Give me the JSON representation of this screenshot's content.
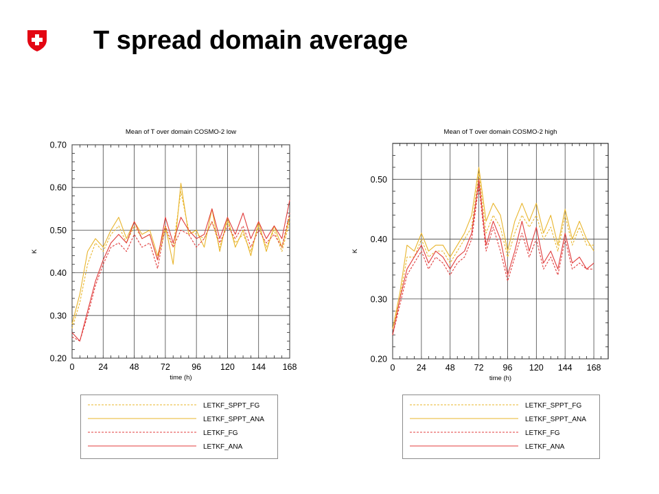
{
  "slide": {
    "title": "T spread domain average",
    "logo": {
      "icon": "swiss-cross-shield-icon",
      "color": "#e30613"
    }
  },
  "colors": {
    "sppt": "#e8b42a",
    "letkf": "#e03a3a",
    "grid": "#000000"
  },
  "legend": {
    "entries": [
      {
        "label": "LETKF_SPPT_FG",
        "color": "#e8b42a",
        "dash": "dashed"
      },
      {
        "label": "LETKF_SPPT_ANA",
        "color": "#e8b42a",
        "dash": "solid"
      },
      {
        "label": "LETKF_FG",
        "color": "#e03a3a",
        "dash": "dashed"
      },
      {
        "label": "LETKF_ANA",
        "color": "#e03a3a",
        "dash": "solid"
      }
    ]
  },
  "chart_data": [
    {
      "type": "line",
      "title": "Mean of T over domain COSMO-2 low",
      "xlabel": "time (h)",
      "ylabel": "K",
      "xlim": [
        0,
        168
      ],
      "ylim": [
        0.2,
        0.7
      ],
      "xticks": [
        0,
        24,
        48,
        72,
        96,
        120,
        144,
        168
      ],
      "yticks": [
        0.2,
        0.3,
        0.4,
        0.5,
        0.6,
        0.7
      ],
      "yticklabels": [
        "0.20",
        "0.30",
        "0.40",
        "0.50",
        "0.60",
        "0.70"
      ],
      "grid": true,
      "legend_position": "below",
      "x": [
        0,
        6,
        12,
        18,
        24,
        30,
        36,
        42,
        48,
        54,
        60,
        66,
        72,
        78,
        84,
        90,
        96,
        102,
        108,
        114,
        120,
        126,
        132,
        138,
        144,
        150,
        156,
        162,
        168
      ],
      "series": [
        {
          "name": "LETKF_SPPT_FG",
          "style": "dashed",
          "color": "#e8b42a",
          "values": [
            0.27,
            0.33,
            0.42,
            0.47,
            0.45,
            0.49,
            0.51,
            0.47,
            0.51,
            0.48,
            0.49,
            0.43,
            0.5,
            0.46,
            0.59,
            0.5,
            0.49,
            0.48,
            0.52,
            0.46,
            0.52,
            0.47,
            0.49,
            0.45,
            0.51,
            0.46,
            0.5,
            0.45,
            0.52
          ]
        },
        {
          "name": "LETKF_SPPT_ANA",
          "style": "solid",
          "color": "#e8b42a",
          "values": [
            0.28,
            0.35,
            0.45,
            0.48,
            0.46,
            0.5,
            0.53,
            0.48,
            0.52,
            0.49,
            0.5,
            0.44,
            0.51,
            0.42,
            0.61,
            0.49,
            0.5,
            0.46,
            0.55,
            0.45,
            0.53,
            0.46,
            0.5,
            0.44,
            0.52,
            0.45,
            0.51,
            0.46,
            0.53
          ]
        },
        {
          "name": "LETKF_FG",
          "style": "dashed",
          "color": "#e03a3a",
          "values": [
            0.25,
            0.24,
            0.3,
            0.37,
            0.42,
            0.46,
            0.47,
            0.45,
            0.49,
            0.46,
            0.47,
            0.41,
            0.51,
            0.46,
            0.5,
            0.49,
            0.46,
            0.48,
            0.52,
            0.47,
            0.51,
            0.48,
            0.51,
            0.46,
            0.5,
            0.47,
            0.49,
            0.46,
            0.54
          ]
        },
        {
          "name": "LETKF_ANA",
          "style": "solid",
          "color": "#e03a3a",
          "values": [
            0.26,
            0.24,
            0.31,
            0.38,
            0.43,
            0.47,
            0.49,
            0.47,
            0.52,
            0.48,
            0.49,
            0.43,
            0.53,
            0.47,
            0.53,
            0.5,
            0.48,
            0.49,
            0.55,
            0.48,
            0.53,
            0.49,
            0.54,
            0.48,
            0.52,
            0.48,
            0.51,
            0.48,
            0.57
          ]
        }
      ]
    },
    {
      "type": "line",
      "title": "Mean of T over domain COSMO-2 high",
      "xlabel": "time (h)",
      "ylabel": "K",
      "xlim": [
        0,
        180
      ],
      "ylim": [
        0.2,
        0.56
      ],
      "xticks": [
        0,
        24,
        48,
        72,
        96,
        120,
        144,
        168
      ],
      "yticks": [
        0.2,
        0.3,
        0.4,
        0.5
      ],
      "yticklabels": [
        "0.20",
        "0.30",
        "0.40",
        "0.50"
      ],
      "grid": true,
      "legend_position": "below",
      "x": [
        0,
        6,
        12,
        18,
        24,
        30,
        36,
        42,
        48,
        54,
        60,
        66,
        72,
        78,
        84,
        90,
        96,
        102,
        108,
        114,
        120,
        126,
        132,
        138,
        144,
        150,
        156,
        162,
        168
      ],
      "series": [
        {
          "name": "LETKF_SPPT_FG",
          "style": "dashed",
          "color": "#e8b42a",
          "values": [
            0.25,
            0.3,
            0.37,
            0.37,
            0.4,
            0.37,
            0.38,
            0.38,
            0.36,
            0.38,
            0.4,
            0.42,
            0.51,
            0.41,
            0.44,
            0.42,
            0.37,
            0.41,
            0.44,
            0.42,
            0.44,
            0.4,
            0.42,
            0.38,
            0.44,
            0.39,
            0.42,
            0.39,
            0.39
          ]
        },
        {
          "name": "LETKF_SPPT_ANA",
          "style": "solid",
          "color": "#e8b42a",
          "values": [
            0.25,
            0.31,
            0.39,
            0.38,
            0.41,
            0.38,
            0.39,
            0.39,
            0.37,
            0.39,
            0.41,
            0.44,
            0.52,
            0.43,
            0.46,
            0.44,
            0.38,
            0.43,
            0.46,
            0.43,
            0.46,
            0.41,
            0.44,
            0.39,
            0.45,
            0.4,
            0.43,
            0.4,
            0.38
          ]
        },
        {
          "name": "LETKF_FG",
          "style": "dashed",
          "color": "#e03a3a",
          "values": [
            0.24,
            0.29,
            0.34,
            0.36,
            0.38,
            0.35,
            0.37,
            0.36,
            0.34,
            0.36,
            0.37,
            0.4,
            0.49,
            0.38,
            0.42,
            0.38,
            0.33,
            0.37,
            0.41,
            0.37,
            0.4,
            0.35,
            0.37,
            0.34,
            0.4,
            0.35,
            0.36,
            0.35,
            0.35
          ]
        },
        {
          "name": "LETKF_ANA",
          "style": "solid",
          "color": "#e03a3a",
          "values": [
            0.24,
            0.3,
            0.35,
            0.37,
            0.39,
            0.36,
            0.38,
            0.37,
            0.35,
            0.37,
            0.38,
            0.41,
            0.5,
            0.39,
            0.43,
            0.4,
            0.34,
            0.38,
            0.43,
            0.38,
            0.42,
            0.36,
            0.38,
            0.35,
            0.41,
            0.36,
            0.37,
            0.35,
            0.36
          ]
        }
      ]
    }
  ]
}
